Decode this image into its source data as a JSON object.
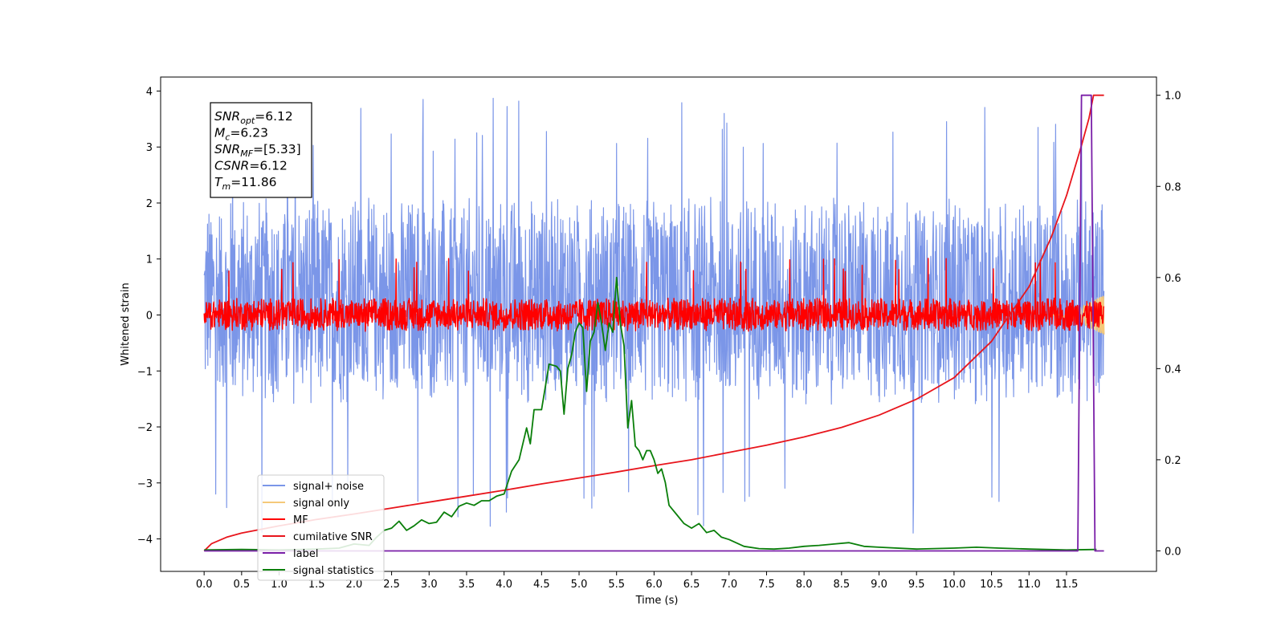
{
  "chart_data": {
    "type": "line",
    "xlabel": "Time (s)",
    "ylabel": "Whitened strain",
    "xlim": [
      -0.58,
      12.7
    ],
    "ylim": [
      -4.58,
      4.25
    ],
    "y2lim": [
      -0.045,
      1.04
    ],
    "x_ticks": [
      "0.0",
      "0.5",
      "1.0",
      "1.5",
      "2.0",
      "2.5",
      "3.0",
      "3.5",
      "4.0",
      "4.5",
      "5.0",
      "5.5",
      "6.0",
      "6.5",
      "7.0",
      "7.5",
      "8.0",
      "8.5",
      "9.0",
      "9.5",
      "10.0",
      "10.5",
      "11.0",
      "11.5"
    ],
    "y_ticks": [
      "4",
      "3",
      "2",
      "1",
      "0",
      "−1",
      "−2",
      "−3",
      "−4"
    ],
    "y2_ticks": [
      "1.0",
      "0.8",
      "0.6",
      "0.4",
      "0.2",
      "0.0"
    ],
    "legend_position": "lower left",
    "info_box": {
      "lines": [
        {
          "main": "SNR",
          "sub": "opt",
          "value": "=6.12"
        },
        {
          "main": "M",
          "sub": "c",
          "value": "=6.23"
        },
        {
          "main": "SNR",
          "sub": "MF",
          "value": "=[5.33]"
        },
        {
          "main": "CSNR",
          "sub": "",
          "value": "=6.12"
        },
        {
          "main": "T",
          "sub": "m",
          "value": "=11.86"
        }
      ]
    },
    "series": [
      {
        "name": "signal+ noise",
        "color": "#7b96e8",
        "kind": "noise",
        "x_range": [
          0.0,
          12.0
        ],
        "band": [
          -1.6,
          2.1
        ],
        "extremes": [
          -3.9,
          3.88
        ]
      },
      {
        "name": "signal only",
        "color": "#f5c97a",
        "kind": "chirp",
        "x_range": [
          11.3,
          12.0
        ],
        "amplitude": 0.35
      },
      {
        "name": "MF",
        "color": "#ff0000",
        "kind": "noise",
        "x_range": [
          0.0,
          12.0
        ],
        "band": [
          -0.28,
          0.3
        ],
        "extremes": [
          -0.3,
          1.02
        ]
      },
      {
        "name": "cumilative SNR",
        "color": "#e8151c",
        "kind": "curve",
        "axis": "right",
        "x": [
          0.0,
          0.1,
          0.3,
          0.5,
          1.0,
          1.5,
          2.0,
          2.5,
          3.0,
          3.5,
          4.0,
          4.5,
          5.0,
          5.5,
          6.0,
          6.5,
          7.0,
          7.5,
          8.0,
          8.5,
          9.0,
          9.5,
          10.0,
          10.5,
          11.0,
          11.3,
          11.5,
          11.7,
          11.8,
          11.86,
          12.0
        ],
        "values": [
          0.0,
          0.016,
          0.03,
          0.039,
          0.055,
          0.069,
          0.081,
          0.094,
          0.107,
          0.12,
          0.133,
          0.147,
          0.16,
          0.173,
          0.187,
          0.2,
          0.216,
          0.232,
          0.25,
          0.271,
          0.298,
          0.333,
          0.38,
          0.46,
          0.58,
          0.69,
          0.78,
          0.89,
          0.95,
          1.0,
          1.0
        ]
      },
      {
        "name": "label",
        "color": "#7a1fa8",
        "kind": "step",
        "axis": "right",
        "x": [
          0.0,
          11.65,
          11.7,
          11.83,
          11.88,
          12.0
        ],
        "values": [
          0.0,
          0.0,
          1.0,
          1.0,
          0.0,
          0.0
        ]
      },
      {
        "name": "signal statistics",
        "color": "#0a7f0a",
        "kind": "curve",
        "axis": "right",
        "x": [
          0.0,
          0.5,
          1.0,
          1.5,
          1.8,
          2.0,
          2.2,
          2.3,
          2.4,
          2.5,
          2.6,
          2.7,
          2.8,
          2.9,
          3.0,
          3.1,
          3.2,
          3.3,
          3.4,
          3.5,
          3.6,
          3.7,
          3.8,
          3.9,
          4.0,
          4.1,
          4.2,
          4.3,
          4.35,
          4.4,
          4.5,
          4.6,
          4.7,
          4.75,
          4.8,
          4.85,
          4.9,
          4.95,
          5.0,
          5.05,
          5.1,
          5.15,
          5.2,
          5.25,
          5.3,
          5.35,
          5.4,
          5.45,
          5.5,
          5.55,
          5.6,
          5.65,
          5.7,
          5.75,
          5.8,
          5.85,
          5.9,
          5.95,
          6.0,
          6.05,
          6.1,
          6.15,
          6.2,
          6.3,
          6.4,
          6.5,
          6.6,
          6.7,
          6.8,
          6.9,
          7.0,
          7.2,
          7.4,
          7.6,
          7.8,
          8.0,
          8.2,
          8.4,
          8.6,
          8.8,
          9.0,
          9.5,
          10.0,
          10.3,
          10.6,
          11.0,
          11.5,
          11.9
        ],
        "values": [
          0.002,
          0.003,
          0.002,
          0.004,
          0.006,
          0.015,
          0.012,
          0.03,
          0.045,
          0.05,
          0.065,
          0.045,
          0.055,
          0.068,
          0.06,
          0.063,
          0.085,
          0.075,
          0.098,
          0.105,
          0.1,
          0.11,
          0.11,
          0.12,
          0.125,
          0.175,
          0.2,
          0.27,
          0.235,
          0.31,
          0.31,
          0.41,
          0.405,
          0.395,
          0.3,
          0.4,
          0.43,
          0.48,
          0.5,
          0.49,
          0.35,
          0.46,
          0.48,
          0.545,
          0.5,
          0.44,
          0.5,
          0.48,
          0.6,
          0.5,
          0.45,
          0.27,
          0.33,
          0.23,
          0.22,
          0.2,
          0.22,
          0.22,
          0.2,
          0.17,
          0.18,
          0.15,
          0.1,
          0.08,
          0.06,
          0.05,
          0.06,
          0.04,
          0.045,
          0.03,
          0.025,
          0.01,
          0.005,
          0.004,
          0.006,
          0.01,
          0.012,
          0.015,
          0.018,
          0.01,
          0.008,
          0.004,
          0.006,
          0.008,
          0.006,
          0.004,
          0.002,
          0.003
        ]
      }
    ]
  }
}
